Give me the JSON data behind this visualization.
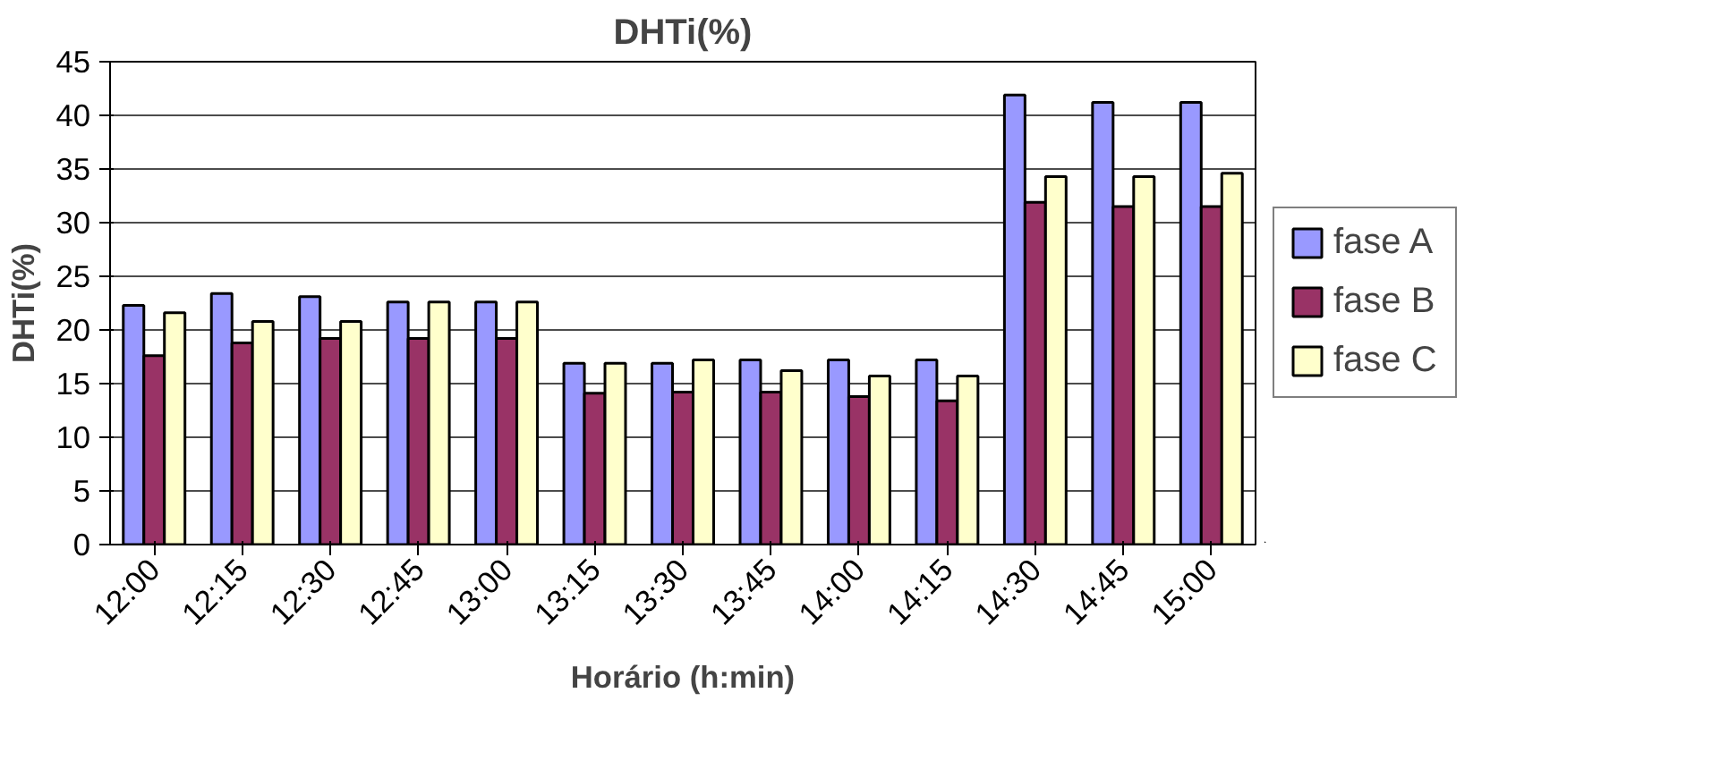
{
  "chart_data": {
    "type": "bar",
    "title": "DHTi(%)",
    "xlabel": "Horário (h:min)",
    "ylabel": "DHTi(%)",
    "categories": [
      "12:00",
      "12:15",
      "12:30",
      "12:45",
      "13:00",
      "13:15",
      "13:30",
      "13:45",
      "14:00",
      "14:15",
      "14:30",
      "14:45",
      "15:00"
    ],
    "series": [
      {
        "name": "fase A",
        "color": "#9999ff",
        "values": [
          22.3,
          23.4,
          23.1,
          22.6,
          22.6,
          16.9,
          16.9,
          17.2,
          17.2,
          17.2,
          41.9,
          41.2,
          41.2
        ]
      },
      {
        "name": "fase B",
        "color": "#993366",
        "values": [
          17.6,
          18.8,
          19.2,
          19.2,
          19.2,
          14.1,
          14.2,
          14.2,
          13.8,
          13.4,
          31.9,
          31.5,
          31.5
        ]
      },
      {
        "name": "fase C",
        "color": "#ffffcc",
        "values": [
          21.6,
          20.8,
          20.8,
          22.6,
          22.6,
          16.9,
          17.2,
          16.2,
          15.7,
          15.7,
          34.3,
          34.3,
          34.6
        ]
      }
    ],
    "ylim": [
      0,
      45
    ],
    "yticks": [
      0,
      5,
      10,
      15,
      20,
      25,
      30,
      35,
      40,
      45
    ],
    "grid": "y",
    "legend": "right"
  }
}
